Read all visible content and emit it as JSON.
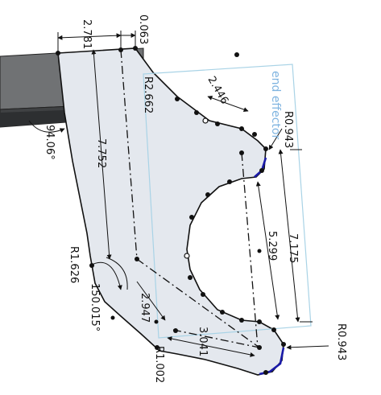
{
  "sketch": {
    "entity_label": "end effector",
    "dimensions": {
      "top_width": "2.781",
      "top_offset": "0.063",
      "fillet_top": "R2.662",
      "slot_width": "2.446",
      "radius_upper": "R0.943",
      "angle_left": "94.06°",
      "height_main": "7.752",
      "overall_height": "7.175",
      "slot_height": "5.299",
      "radius_left": "R1.626",
      "angle_lower": "150.015°",
      "diag_lower": "2.947",
      "tip_length": "3.041",
      "radius_tip": "R1.002",
      "radius_lower_right": "R0.943"
    },
    "colors": {
      "region_fill": "#e4e8ee",
      "solid_body": "#6e7072",
      "solid_body_dark": "#3d3f41",
      "edge_selected": "#1a1aa8",
      "reference_box": "#a9d3e6",
      "label_blue": "#7fb4e0"
    }
  }
}
